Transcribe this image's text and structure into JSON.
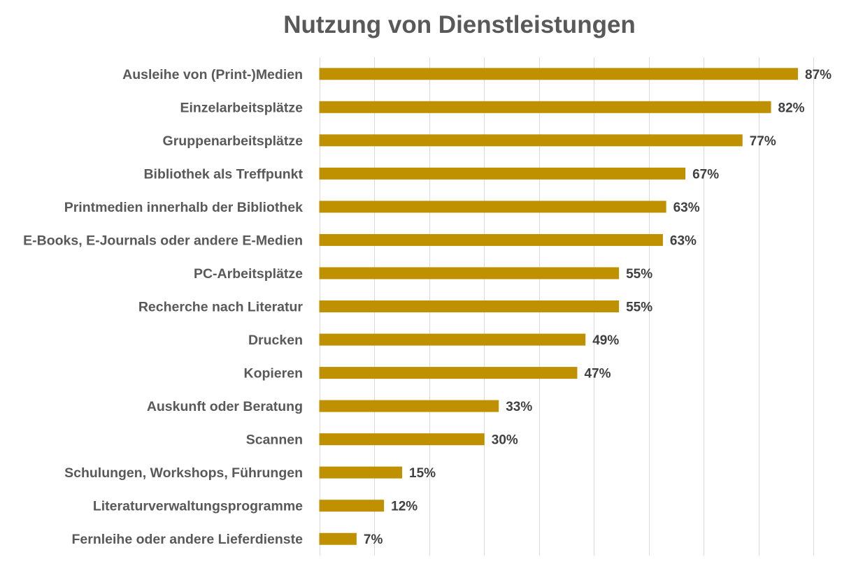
{
  "chart_data": {
    "type": "bar",
    "orientation": "horizontal",
    "title": "Nutzung von Dienstleistungen",
    "xlabel": "",
    "ylabel": "",
    "xlim": [
      0,
      90
    ],
    "grid": true,
    "legend": "none",
    "bar_color": "#bf9000",
    "value_suffix": "%",
    "categories": [
      "Ausleihe von (Print-)Medien",
      "Einzelarbeitsplätze",
      "Gruppenarbeitsplätze",
      "Bibliothek als Treffpunkt",
      "Printmedien innerhalb der Bibliothek",
      "E-Books, E-Journals oder andere E-Medien",
      "PC-Arbeitsplätze",
      "Recherche nach Literatur",
      "Drucken",
      "Kopieren",
      "Auskunft oder Beratung",
      "Scannen",
      "Schulungen, Workshops, Führungen",
      "Literaturverwaltungsprogramme",
      "Fernleihe oder andere Lieferdienste"
    ],
    "values": [
      87.2,
      82.3,
      77.1,
      66.7,
      63.2,
      62.6,
      54.6,
      54.6,
      48.5,
      47.0,
      32.7,
      30.1,
      15.1,
      11.8,
      6.8
    ],
    "data_labels": [
      "87%",
      "82%",
      "77%",
      "67%",
      "63%",
      "63%",
      "55%",
      "55%",
      "49%",
      "47%",
      "33%",
      "30%",
      "15%",
      "12%",
      "7%"
    ]
  }
}
